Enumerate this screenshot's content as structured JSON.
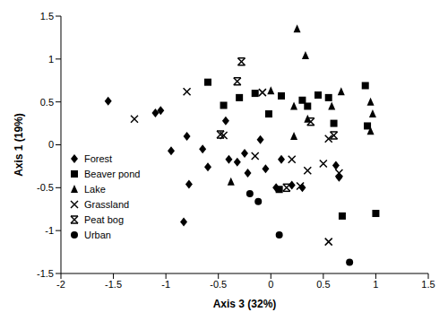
{
  "chart_data": {
    "type": "scatter",
    "x_label": "Axis 3 (32%)",
    "y_label": "Axis 1 (19%)",
    "xlim": [
      -2,
      1.5
    ],
    "xticks": [
      -2,
      -1.5,
      -1,
      -0.5,
      0,
      0.5,
      1,
      1.5
    ],
    "ylim": [
      -1.5,
      1.5
    ],
    "yticks": [
      -1.5,
      -1,
      -0.5,
      0,
      0.5,
      1,
      1.5
    ],
    "grid": false,
    "legend": "left",
    "series": [
      {
        "name": "Forest",
        "color": "#000000",
        "marker": "diamond",
        "x": [
          -1.55,
          -1.1,
          -1.05,
          -0.95,
          -0.8,
          -0.78,
          -0.83,
          -0.6,
          -0.65,
          -0.43,
          -0.4,
          -0.32,
          -0.22,
          -0.25,
          -0.1,
          -0.05,
          0.1,
          0.05,
          0.2,
          0.3,
          0.62,
          0.65
        ],
        "y": [
          0.51,
          0.37,
          0.4,
          -0.07,
          0.1,
          -0.46,
          -0.9,
          -0.26,
          -0.05,
          0.28,
          -0.17,
          -0.2,
          -0.33,
          -0.1,
          0.06,
          -0.28,
          -0.17,
          -0.5,
          -0.47,
          -0.5,
          -0.24,
          -0.38
        ]
      },
      {
        "name": "Beaver pond",
        "color": "#000000",
        "marker": "square",
        "x": [
          -0.6,
          -0.45,
          -0.3,
          -0.15,
          -0.02,
          0.1,
          0.3,
          0.35,
          0.45,
          0.55,
          0.6,
          0.9,
          0.92,
          0.08,
          0.68,
          1.0
        ],
        "y": [
          0.73,
          0.46,
          0.55,
          0.6,
          0.36,
          0.57,
          0.52,
          0.45,
          0.58,
          0.55,
          0.25,
          0.69,
          0.22,
          -0.52,
          -0.83,
          -0.8
        ]
      },
      {
        "name": "Lake",
        "color": "#000000",
        "marker": "triangle",
        "x": [
          0.0,
          0.25,
          0.33,
          0.22,
          0.35,
          0.58,
          0.67,
          0.95,
          0.97,
          0.95,
          0.22,
          -0.38
        ],
        "y": [
          0.63,
          1.35,
          1.04,
          0.45,
          0.3,
          0.45,
          0.62,
          0.5,
          0.36,
          0.16,
          0.1,
          -0.43
        ]
      },
      {
        "name": "Grassland",
        "color": "#000000",
        "marker": "x",
        "x": [
          -1.3,
          -0.8,
          -0.45,
          -0.15,
          -0.08,
          0.2,
          0.28,
          0.35,
          0.5,
          0.55,
          0.65,
          0.55
        ],
        "y": [
          0.3,
          0.62,
          0.11,
          -0.13,
          0.61,
          -0.17,
          -0.48,
          -0.3,
          -0.22,
          0.07,
          -0.33,
          -1.13
        ]
      },
      {
        "name": "Peat bog",
        "color": "#000000",
        "marker": "asterisk",
        "x": [
          -0.28,
          -0.32,
          -0.48,
          0.15,
          0.38,
          0.6
        ],
        "y": [
          0.97,
          0.74,
          0.12,
          -0.5,
          0.27,
          0.11
        ]
      },
      {
        "name": "Urban",
        "color": "#000000",
        "marker": "circle",
        "x": [
          -0.2,
          -0.12,
          0.08,
          0.75
        ],
        "y": [
          -0.57,
          -0.66,
          -1.05,
          -1.37
        ]
      }
    ]
  }
}
